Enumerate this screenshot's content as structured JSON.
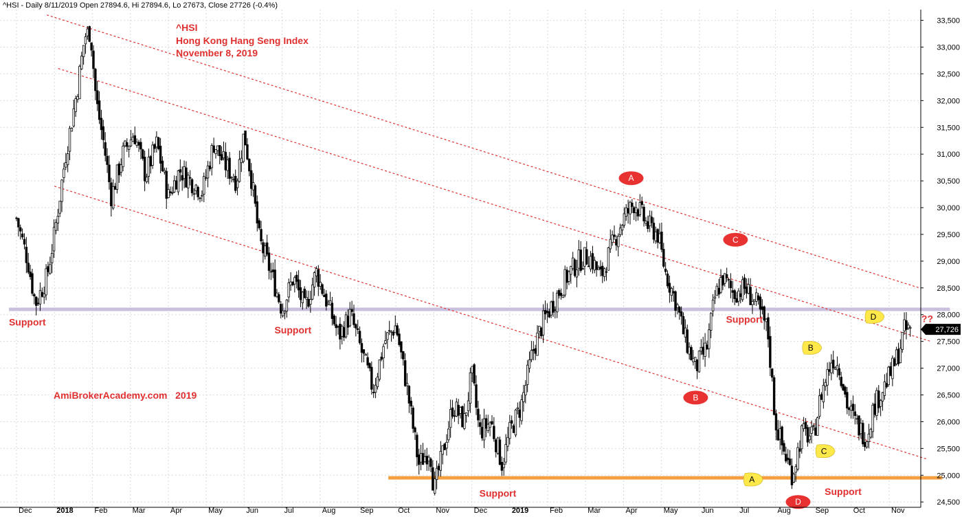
{
  "header": {
    "text": "^HSI - Daily 8/11/2019 Open 27894.6, Hi 27894.6, Lo 27673, Close 27726 (-0.4%)"
  },
  "title_block": {
    "line1": "^HSI",
    "line2": "Hong Kong Hang Seng Index",
    "line3": "November 8, 2019"
  },
  "watermark": "AmiBrokerAcademy.com   2019",
  "colors": {
    "accent": "#e03030",
    "support_purple": "#c8c0dc",
    "support_orange": "#f5a040",
    "bubble_red": "#e83232",
    "bubble_yellow": "#ffe84a",
    "candle": "#000000",
    "grid": "#d9d9d9"
  },
  "chart_data": {
    "type": "candlestick",
    "series_name": "^HSI",
    "ylim": [
      24400,
      33700
    ],
    "y_ticks": [
      24500,
      25000,
      25500,
      26000,
      26500,
      27000,
      27500,
      28000,
      28500,
      29000,
      29500,
      30000,
      30500,
      31000,
      31500,
      32000,
      32500,
      33000,
      33500
    ],
    "y_tick_labels": [
      "24,500",
      "25,000",
      "25,500",
      "26,000",
      "26,500",
      "27,000",
      "27,500",
      "28,000",
      "28,500",
      "29,000",
      "29,500",
      "30,000",
      "30,500",
      "31,000",
      "31,500",
      "32,000",
      "32,500",
      "33,000",
      "33,500"
    ],
    "x_months": [
      "Dec",
      "2018",
      "Feb",
      "Mar",
      "Apr",
      "May",
      "Jun",
      "Jul",
      "Aug",
      "Sep",
      "Oct",
      "Nov",
      "Dec",
      "2019",
      "Feb",
      "Mar",
      "Apr",
      "May",
      "Jun",
      "Jul",
      "Aug",
      "Sep",
      "Oct",
      "Nov"
    ],
    "x_month_index": [
      0,
      1,
      2,
      3,
      4,
      5,
      6,
      7,
      8,
      9,
      10,
      11,
      12,
      13,
      14,
      15,
      16,
      17,
      18,
      19,
      20,
      21,
      22,
      23
    ],
    "last_close": 27726,
    "last_close_label": "27,726",
    "price_path": [
      [
        0,
        29800
      ],
      [
        0.3,
        29000
      ],
      [
        0.5,
        28200
      ],
      [
        0.8,
        28700
      ],
      [
        1.0,
        29500
      ],
      [
        1.3,
        31000
      ],
      [
        1.6,
        32200
      ],
      [
        1.8,
        33200
      ],
      [
        1.95,
        33300
      ],
      [
        2.1,
        32000
      ],
      [
        2.3,
        31200
      ],
      [
        2.5,
        30200
      ],
      [
        2.8,
        31000
      ],
      [
        3.1,
        31400
      ],
      [
        3.4,
        30600
      ],
      [
        3.7,
        31200
      ],
      [
        4.0,
        30200
      ],
      [
        4.3,
        30700
      ],
      [
        4.6,
        30500
      ],
      [
        4.9,
        30300
      ],
      [
        5.2,
        31200
      ],
      [
        5.5,
        30800
      ],
      [
        5.8,
        30500
      ],
      [
        6.0,
        31400
      ],
      [
        6.2,
        30500
      ],
      [
        6.4,
        29400
      ],
      [
        6.7,
        28800
      ],
      [
        7.0,
        28100
      ],
      [
        7.3,
        28700
      ],
      [
        7.6,
        28100
      ],
      [
        7.9,
        28800
      ],
      [
        8.2,
        28200
      ],
      [
        8.5,
        27600
      ],
      [
        8.8,
        28000
      ],
      [
        9.1,
        27300
      ],
      [
        9.4,
        26600
      ],
      [
        9.7,
        27500
      ],
      [
        10.0,
        27800
      ],
      [
        10.3,
        26600
      ],
      [
        10.6,
        25200
      ],
      [
        10.9,
        25500
      ],
      [
        11.0,
        24700
      ],
      [
        11.2,
        25300
      ],
      [
        11.5,
        26300
      ],
      [
        11.8,
        26000
      ],
      [
        12.0,
        26900
      ],
      [
        12.2,
        25800
      ],
      [
        12.5,
        26000
      ],
      [
        12.8,
        25200
      ],
      [
        13.0,
        25800
      ],
      [
        13.3,
        26300
      ],
      [
        13.6,
        27300
      ],
      [
        13.9,
        27900
      ],
      [
        14.2,
        28300
      ],
      [
        14.5,
        28700
      ],
      [
        14.8,
        29000
      ],
      [
        15.1,
        29100
      ],
      [
        15.4,
        28700
      ],
      [
        15.7,
        29300
      ],
      [
        16.0,
        29800
      ],
      [
        16.3,
        30100
      ],
      [
        16.6,
        29700
      ],
      [
        16.9,
        29500
      ],
      [
        17.1,
        28800
      ],
      [
        17.4,
        28200
      ],
      [
        17.6,
        27600
      ],
      [
        17.9,
        27000
      ],
      [
        18.2,
        27400
      ],
      [
        18.4,
        28300
      ],
      [
        18.6,
        28700
      ],
      [
        18.9,
        28400
      ],
      [
        19.2,
        28500
      ],
      [
        19.5,
        28200
      ],
      [
        19.8,
        27700
      ],
      [
        20.0,
        26000
      ],
      [
        20.2,
        25500
      ],
      [
        20.45,
        25000
      ],
      [
        20.7,
        25800
      ],
      [
        21.0,
        25700
      ],
      [
        21.2,
        26500
      ],
      [
        21.5,
        27200
      ],
      [
        21.7,
        27000
      ],
      [
        21.9,
        26300
      ],
      [
        22.1,
        26000
      ],
      [
        22.4,
        25700
      ],
      [
        22.6,
        26300
      ],
      [
        22.9,
        26700
      ],
      [
        23.1,
        27000
      ],
      [
        23.25,
        27300
      ],
      [
        23.4,
        27700
      ],
      [
        23.6,
        27726
      ]
    ],
    "trend_lines": [
      {
        "name": "upper-channel-line",
        "from": [
          0.8,
          33600
        ],
        "to": [
          23.8,
          28500
        ]
      },
      {
        "name": "middle-channel-line",
        "from": [
          1.1,
          32600
        ],
        "to": [
          24.1,
          27500
        ]
      },
      {
        "name": "lower-channel-line",
        "from": [
          1.0,
          30400
        ],
        "to": [
          24.0,
          25300
        ]
      }
    ],
    "support_lines": [
      {
        "name": "support-line-28100",
        "value": 28100,
        "x_from": -0.2,
        "x_to": 24.6,
        "color": "#c8c0dc"
      },
      {
        "name": "support-line-24950",
        "value": 24950,
        "x_from": 9.8,
        "x_to": 24.4,
        "color": "#f5a040"
      }
    ],
    "support_labels": [
      {
        "text": "Support",
        "x": -0.2,
        "value": 27800
      },
      {
        "text": "Support",
        "x": 6.8,
        "value": 27650
      },
      {
        "text": "Support",
        "x": 18.7,
        "value": 27850
      },
      {
        "text": "Support",
        "x": 12.2,
        "value": 24600
      },
      {
        "text": "Support",
        "x": 21.3,
        "value": 24630
      }
    ],
    "wave_markers": [
      {
        "label": "A",
        "style": "red",
        "x": 16.2,
        "value": 30550
      },
      {
        "label": "B",
        "style": "red",
        "x": 17.9,
        "value": 26450
      },
      {
        "label": "C",
        "style": "red",
        "x": 18.95,
        "value": 29400
      },
      {
        "label": "D",
        "style": "red",
        "x": 20.6,
        "value": 24500
      },
      {
        "label": "A",
        "style": "yellow",
        "x": 19.4,
        "value": 24920
      },
      {
        "label": "B",
        "style": "yellow",
        "x": 20.95,
        "value": 27380
      },
      {
        "label": "C",
        "style": "yellow",
        "x": 21.3,
        "value": 25450
      },
      {
        "label": "D",
        "style": "yellow",
        "x": 22.6,
        "value": 27960
      }
    ],
    "question_label": {
      "text": "??",
      "x": 23.85,
      "value": 27860
    }
  }
}
